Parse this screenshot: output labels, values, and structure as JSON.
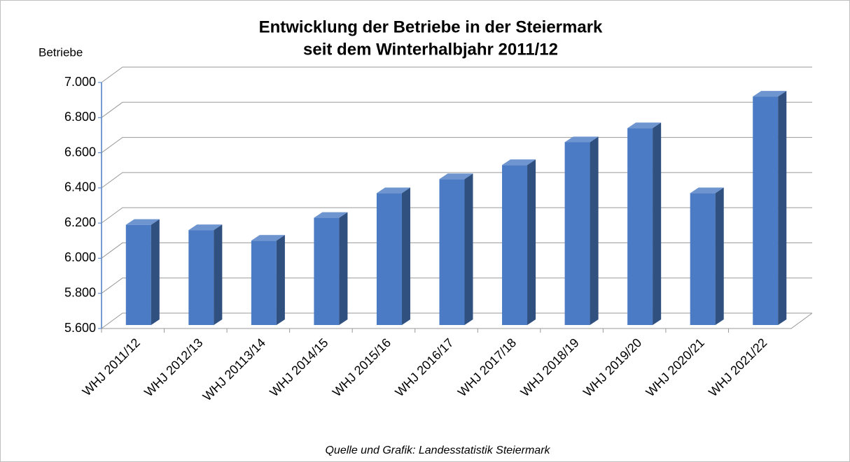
{
  "chart_data": {
    "type": "bar3d",
    "title": "Entwicklung der Betriebe in der Steiermark",
    "subtitle": "seit dem Winterhalbjahr 2011/12",
    "y_label": "Betriebe",
    "source": "Quelle und Grafik: Landesstatistik Steiermark",
    "categories": [
      "WHJ 2011/12",
      "WHJ 2012/13",
      "WHJ 20113/14",
      "WHJ 2014/15",
      "WHJ 2015/16",
      "WHJ 2016/17",
      "WHJ 2017/18",
      "WHJ 2018/19",
      "WHJ 2019/20",
      "WHJ 2020/21",
      "WHJ 2021/22"
    ],
    "values": [
      6190,
      6160,
      6100,
      6230,
      6370,
      6450,
      6530,
      6660,
      6740,
      6370,
      6920
    ],
    "color": "#4a7bc4",
    "ylim": [
      5600,
      7000
    ],
    "yticks": [
      {
        "value": 5600,
        "label": "5.600"
      },
      {
        "value": 5800,
        "label": "5.800"
      },
      {
        "value": 6000,
        "label": "6.000"
      },
      {
        "value": 6200,
        "label": "6.200"
      },
      {
        "value": 6400,
        "label": "6.400"
      },
      {
        "value": 6600,
        "label": "6.600"
      },
      {
        "value": 6800,
        "label": "6.800"
      },
      {
        "value": 7000,
        "label": "7.000"
      }
    ],
    "grid": true
  }
}
